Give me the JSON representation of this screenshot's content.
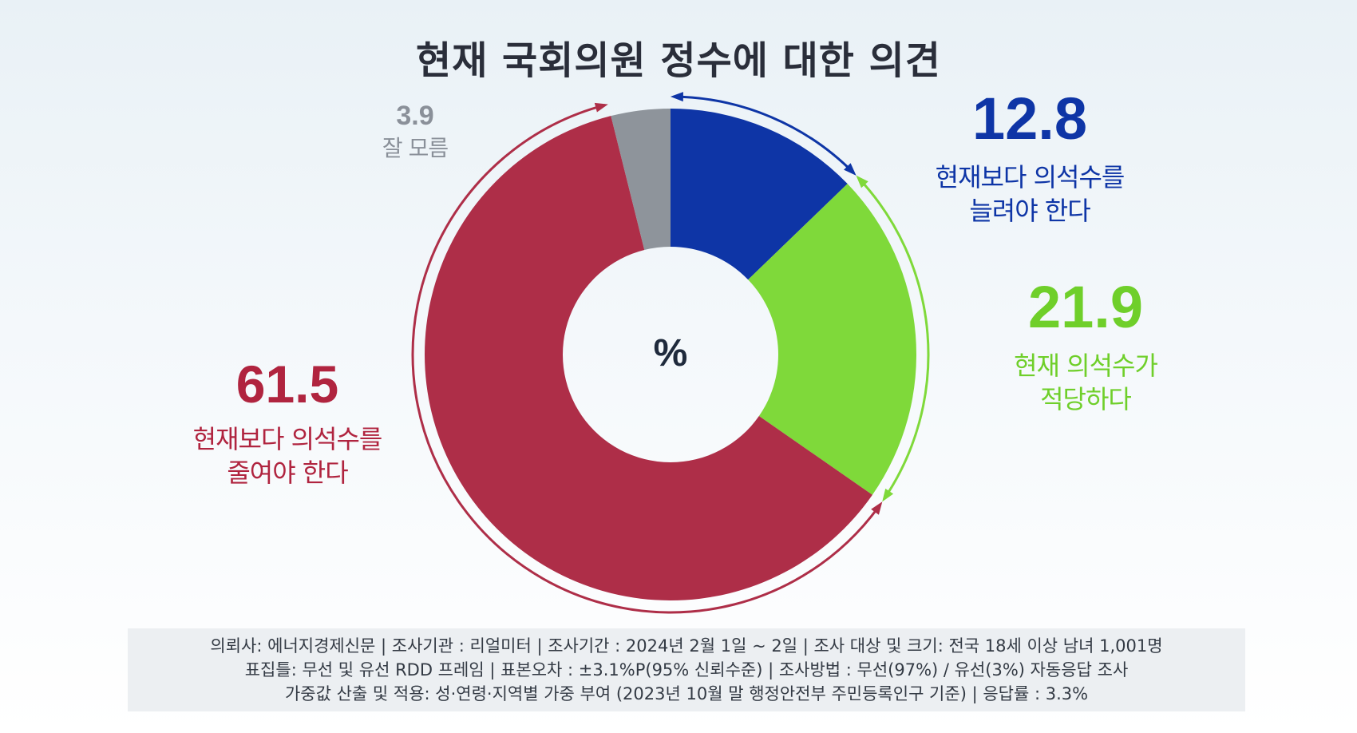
{
  "title": "현재 국회의원 정수에 대한 의견",
  "unit": "%",
  "chart_data": {
    "type": "pie",
    "title": "현재 국회의원 정수에 대한 의견",
    "unit": "%",
    "slices": [
      {
        "label": "현재보다 의석수를 늘려야 한다",
        "value": 12.8,
        "color": "#0e35a6"
      },
      {
        "label": "현재 의석수가 적당하다",
        "value": 21.9,
        "color": "#7fd93a"
      },
      {
        "label": "현재보다 의석수를 줄여야 한다",
        "value": 61.5,
        "color": "#ae2e48"
      },
      {
        "label": "잘 모름",
        "value": 3.9,
        "color": "#8e949b"
      }
    ]
  },
  "labels": {
    "increase": {
      "value": "12.8",
      "line1": "현재보다 의석수를",
      "line2": "늘려야 한다"
    },
    "adequate": {
      "value": "21.9",
      "line1": "현재 의석수가",
      "line2": "적당하다"
    },
    "reduce": {
      "value": "61.5",
      "line1": "현재보다 의석수를",
      "line2": "줄여야 한다"
    },
    "dont_know": {
      "value": "3.9",
      "line1": "잘 모름"
    }
  },
  "footer": {
    "line1": "의뢰사: 에너지경제신문 | 조사기관 : 리얼미터  |  조사기간 : 2024년 2월 1일 ~ 2일 | 조사 대상 및 크기: 전국 18세 이상 남녀 1,001명",
    "line2": "표집틀: 무선 및 유선 RDD 프레임 | 표본오차 : ±3.1%P(95% 신뢰수준) | 조사방법 : 무선(97%) / 유선(3%) 자동응답 조사",
    "line3": "가중값 산출 및 적용: 성·연령·지역별 가중 부여 (2023년 10월 말 행정안전부 주민등록인구 기준) | 응답률 : 3.3%"
  }
}
